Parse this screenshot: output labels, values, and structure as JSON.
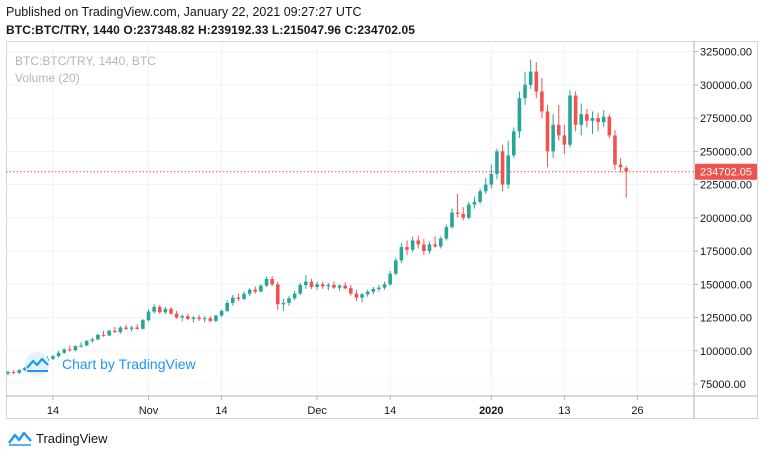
{
  "header": {
    "published": "Published on TradingView.com, January 22, 2021 09:27:27 UTC",
    "symbol": "BTC:BTC/TRY, 1440",
    "o_label": "O:",
    "o_value": "237348.82",
    "h_label": "H:",
    "h_value": "239192.33",
    "l_label": "L:",
    "l_value": "215047.96",
    "c_label": "C:",
    "c_value": "234702.05"
  },
  "legend": {
    "series": "BTC:BTC/TRY, 1440, BTC",
    "volume": "Volume (20)"
  },
  "watermark": "Chart by TradingView",
  "footer": {
    "brand": "TradingView"
  },
  "colors": {
    "up": "#26a69a",
    "down": "#ef5350",
    "price_line": "#ef5350",
    "price_badge": "#ef5350"
  },
  "chart_data": {
    "type": "candlestick",
    "ylim": [
      66000,
      333000
    ],
    "y_ticks": [
      75000,
      100000,
      125000,
      150000,
      175000,
      200000,
      225000,
      250000,
      275000,
      300000,
      325000
    ],
    "y_tick_labels": [
      "75000.00",
      "100000.00",
      "125000.00",
      "150000.00",
      "175000.00",
      "200000.00",
      "225000.00",
      "250000.00",
      "275000.00",
      "300000.00",
      "325000.00"
    ],
    "x_tick_labels": [
      {
        "label": "14",
        "index": 8,
        "bold": false
      },
      {
        "label": "Nov",
        "index": 25,
        "bold": false
      },
      {
        "label": "14",
        "index": 38,
        "bold": false
      },
      {
        "label": "Dec",
        "index": 55,
        "bold": false
      },
      {
        "label": "14",
        "index": 68,
        "bold": false
      },
      {
        "label": "2020",
        "index": 86,
        "bold": true
      },
      {
        "label": "13",
        "index": 99,
        "bold": false
      },
      {
        "label": "26",
        "index": 112,
        "bold": false
      }
    ],
    "last_price": 234702.05,
    "last_price_label": "234702.05",
    "ohlc": [
      [
        83000,
        85000,
        81500,
        84000
      ],
      [
        84000,
        85500,
        82500,
        83500
      ],
      [
        83500,
        86000,
        82500,
        85500
      ],
      [
        85500,
        88000,
        84500,
        87000
      ],
      [
        87000,
        90000,
        86000,
        89000
      ],
      [
        89000,
        91000,
        87500,
        88500
      ],
      [
        88500,
        93000,
        88000,
        92000
      ],
      [
        92000,
        96000,
        91000,
        94000
      ],
      [
        94000,
        97000,
        93000,
        96000
      ],
      [
        96000,
        100000,
        95000,
        98500
      ],
      [
        98500,
        102000,
        97500,
        101000
      ],
      [
        101000,
        104000,
        99500,
        100500
      ],
      [
        100500,
        104000,
        99500,
        103500
      ],
      [
        103500,
        106500,
        102500,
        104000
      ],
      [
        104000,
        108000,
        103500,
        107500
      ],
      [
        107500,
        110000,
        106000,
        108500
      ],
      [
        108500,
        113000,
        108000,
        112000
      ],
      [
        112000,
        115000,
        110500,
        111500
      ],
      [
        111500,
        116000,
        111000,
        115000
      ],
      [
        115000,
        118000,
        113500,
        114000
      ],
      [
        114000,
        118500,
        113000,
        117500
      ],
      [
        117500,
        119500,
        115500,
        116500
      ],
      [
        116500,
        119000,
        114500,
        117500
      ],
      [
        117500,
        120000,
        116000,
        116500
      ],
      [
        116500,
        124000,
        116000,
        123000
      ],
      [
        123000,
        131000,
        122000,
        129500
      ],
      [
        129500,
        135000,
        128000,
        133000
      ],
      [
        133000,
        134500,
        128000,
        129000
      ],
      [
        129000,
        133000,
        127500,
        131500
      ],
      [
        131500,
        133000,
        127000,
        128000
      ],
      [
        128000,
        130000,
        124000,
        125000
      ],
      [
        125000,
        127500,
        122000,
        126000
      ],
      [
        126000,
        128000,
        123000,
        124000
      ],
      [
        124000,
        126000,
        121500,
        125000
      ],
      [
        125000,
        127000,
        122500,
        124000
      ],
      [
        124000,
        126000,
        121500,
        124500
      ],
      [
        124500,
        126000,
        121500,
        122500
      ],
      [
        122500,
        127000,
        121500,
        126500
      ],
      [
        126500,
        131000,
        125500,
        130000
      ],
      [
        130000,
        138000,
        129000,
        136000
      ],
      [
        136000,
        142000,
        134000,
        140000
      ],
      [
        140000,
        143000,
        137500,
        139000
      ],
      [
        139000,
        144500,
        138000,
        143000
      ],
      [
        143000,
        147000,
        141000,
        146000
      ],
      [
        146000,
        148500,
        143000,
        144500
      ],
      [
        144500,
        150000,
        144000,
        149000
      ],
      [
        149000,
        156000,
        148000,
        154000
      ],
      [
        154000,
        156000,
        148500,
        150000
      ],
      [
        150000,
        152000,
        131000,
        135000
      ],
      [
        135000,
        139000,
        130000,
        136000
      ],
      [
        136000,
        141000,
        134000,
        139500
      ],
      [
        139500,
        145000,
        138000,
        143000
      ],
      [
        143000,
        151000,
        142000,
        149500
      ],
      [
        149500,
        157000,
        146500,
        152000
      ],
      [
        152000,
        154000,
        146500,
        148000
      ],
      [
        148000,
        152000,
        146000,
        150000
      ],
      [
        150000,
        152000,
        146500,
        148500
      ],
      [
        148500,
        151000,
        145500,
        149500
      ],
      [
        149500,
        152000,
        146500,
        147500
      ],
      [
        147500,
        150000,
        145000,
        149000
      ],
      [
        149000,
        151500,
        146000,
        147000
      ],
      [
        147000,
        149500,
        141500,
        143000
      ],
      [
        143000,
        146000,
        137500,
        140000
      ],
      [
        140000,
        143500,
        136500,
        142500
      ],
      [
        142500,
        146000,
        140500,
        144500
      ],
      [
        144500,
        148000,
        142500,
        146500
      ],
      [
        146500,
        149500,
        144500,
        147500
      ],
      [
        147500,
        152000,
        146000,
        150000
      ],
      [
        150000,
        160000,
        149000,
        158000
      ],
      [
        158000,
        170000,
        157000,
        168000
      ],
      [
        168000,
        181000,
        166000,
        178000
      ],
      [
        178000,
        183000,
        172000,
        176000
      ],
      [
        176000,
        186000,
        174000,
        183000
      ],
      [
        183000,
        186500,
        177000,
        180000
      ],
      [
        180000,
        184000,
        172000,
        175000
      ],
      [
        175000,
        182000,
        173000,
        180000
      ],
      [
        180000,
        186000,
        177500,
        178500
      ],
      [
        178500,
        186000,
        177000,
        184500
      ],
      [
        184500,
        195000,
        183000,
        193000
      ],
      [
        193000,
        207000,
        192000,
        204000
      ],
      [
        204000,
        218000,
        200000,
        203000
      ],
      [
        203000,
        208000,
        198000,
        200000
      ],
      [
        200000,
        212000,
        199000,
        210000
      ],
      [
        210000,
        216000,
        207000,
        212000
      ],
      [
        212000,
        222000,
        210500,
        220000
      ],
      [
        220000,
        230000,
        218000,
        225000
      ],
      [
        225000,
        240000,
        222000,
        233000
      ],
      [
        233000,
        252000,
        229000,
        250000
      ],
      [
        250000,
        255000,
        220000,
        225000
      ],
      [
        225000,
        258000,
        222000,
        247000
      ],
      [
        247000,
        268000,
        245000,
        265000
      ],
      [
        265000,
        295000,
        260000,
        290000
      ],
      [
        290000,
        310000,
        285000,
        300000
      ],
      [
        300000,
        319000,
        297000,
        310000
      ],
      [
        310000,
        317000,
        290000,
        295000
      ],
      [
        295000,
        305000,
        275000,
        280000
      ],
      [
        280000,
        285000,
        238000,
        250000
      ],
      [
        250000,
        278000,
        245000,
        270000
      ],
      [
        270000,
        285000,
        258000,
        262000
      ],
      [
        262000,
        270000,
        248000,
        255000
      ],
      [
        255000,
        296000,
        253000,
        292000
      ],
      [
        292000,
        295000,
        265000,
        270000
      ],
      [
        270000,
        286000,
        262000,
        278000
      ],
      [
        278000,
        282000,
        268000,
        273000
      ],
      [
        273000,
        280000,
        263000,
        275000
      ],
      [
        275000,
        279000,
        265000,
        272000
      ],
      [
        272000,
        281000,
        268000,
        276000
      ],
      [
        276000,
        278000,
        260000,
        262000
      ],
      [
        262000,
        266000,
        236000,
        240000
      ],
      [
        240000,
        245000,
        234000,
        238000
      ],
      [
        237348.82,
        239192.33,
        215047.96,
        234702.05
      ]
    ]
  }
}
